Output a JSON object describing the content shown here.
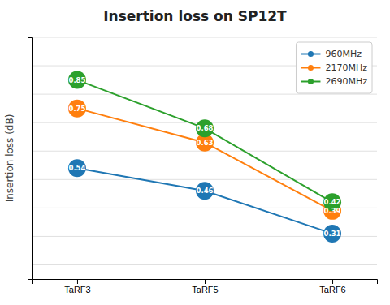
{
  "chart_data": {
    "type": "line",
    "title": "Insertion loss on SP12T",
    "y_label": "Insertion loss (dB)",
    "categories": [
      "TaRF3",
      "TaRF5",
      "TaRF6"
    ],
    "series": [
      {
        "name": "960MHz",
        "values": [
          0.54,
          0.46,
          0.31
        ]
      },
      {
        "name": "2170MHz",
        "values": [
          0.75,
          0.63,
          0.39
        ]
      },
      {
        "name": "2690MHz",
        "values": [
          0.85,
          0.68,
          0.42
        ]
      }
    ],
    "ylim": [
      0.15,
      1.0
    ],
    "yticks": [
      0.2,
      0.3,
      0.4,
      0.5,
      0.6,
      0.7,
      0.8,
      0.9,
      1.0
    ],
    "grid": true,
    "legend": "upper-right",
    "marker": "circle",
    "data_labels": true,
    "tick_labels": "x"
  }
}
